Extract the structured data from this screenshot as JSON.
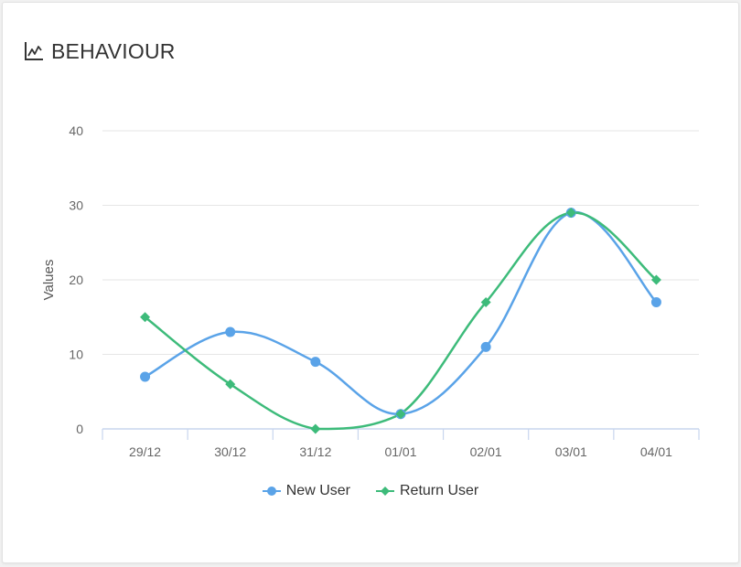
{
  "header": {
    "title": "BEHAVIOUR",
    "icon": "line-chart-icon"
  },
  "colors": {
    "new_user": "#5aa3e8",
    "return_user": "#3dbb7a",
    "grid": "#e6e6e6",
    "axis": "#c8d6ee"
  },
  "chart_data": {
    "type": "line",
    "title": "",
    "xlabel": "",
    "ylabel": "Values",
    "categories": [
      "29/12",
      "30/12",
      "31/12",
      "01/01",
      "02/01",
      "03/01",
      "04/01"
    ],
    "yticks": [
      0,
      10,
      20,
      30,
      40
    ],
    "ylim": [
      0,
      40
    ],
    "grid": true,
    "legend_position": "bottom-center",
    "series": [
      {
        "name": "New User",
        "marker": "circle",
        "values": [
          7,
          13,
          9,
          2,
          11,
          29,
          17
        ]
      },
      {
        "name": "Return User",
        "marker": "diamond",
        "values": [
          15,
          6,
          0,
          2,
          17,
          29,
          20
        ]
      }
    ]
  }
}
